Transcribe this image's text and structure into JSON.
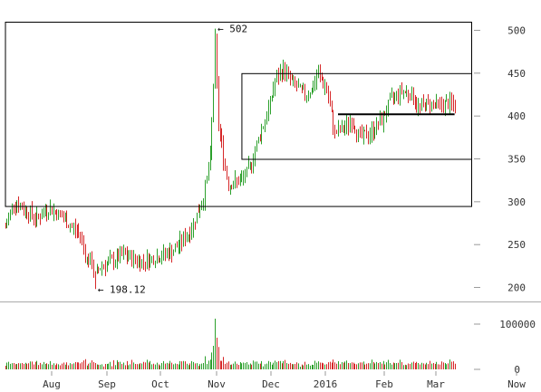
{
  "chart_data": {
    "type": "bar",
    "title": "",
    "xlabel": "",
    "ylabel": "",
    "price_ylim": [
      190,
      510
    ],
    "price_ticks": [
      "500",
      "450",
      "400",
      "350",
      "300",
      "250",
      "200"
    ],
    "volume_ylim": [
      0,
      130000
    ],
    "volume_ticks": [
      "100000",
      "0"
    ],
    "x_labels": [
      "Aug",
      "Sep",
      "Oct",
      "Nov",
      "Dec",
      "2016",
      "Feb",
      "Mar",
      "Now"
    ],
    "grid": false,
    "colors": {
      "up": "#2ca02c",
      "down": "#d62728",
      "guide": "#000000",
      "text": "#333333"
    },
    "annotations": [
      {
        "text": "← 502",
        "x": "2015-11-04",
        "y": 502
      },
      {
        "text": "← 198.12",
        "x": "2015-08-24",
        "y": 198.12
      }
    ],
    "rectangles": [
      {
        "x_from": "2015-07-01",
        "x_to": "2016-04-06",
        "y_from": 295,
        "y_to": 510
      },
      {
        "x_from": "2015-11-20",
        "x_to": "2016-04-06",
        "y_from": 350,
        "y_to": 450
      }
    ],
    "hline": {
      "x_from": "2016-01-17",
      "x_to": "2016-03-27",
      "y": 402
    },
    "series_keypoints": [
      [
        "2015-07-01",
        270
      ],
      [
        "2015-07-06",
        300
      ],
      [
        "2015-07-10",
        295
      ],
      [
        "2015-07-20",
        280
      ],
      [
        "2015-07-27",
        293
      ],
      [
        "2015-08-03",
        284
      ],
      [
        "2015-08-10",
        270
      ],
      [
        "2015-08-15",
        262
      ],
      [
        "2015-08-19",
        232
      ],
      [
        "2015-08-22",
        228
      ],
      [
        "2015-08-24",
        212
      ],
      [
        "2015-08-27",
        225
      ],
      [
        "2015-09-01",
        228
      ],
      [
        "2015-09-10",
        238
      ],
      [
        "2015-09-20",
        230
      ],
      [
        "2015-10-01",
        236
      ],
      [
        "2015-10-10",
        243
      ],
      [
        "2015-10-20",
        265
      ],
      [
        "2015-10-28",
        305
      ],
      [
        "2015-11-01",
        350
      ],
      [
        "2015-11-04",
        480
      ],
      [
        "2015-11-06",
        390
      ],
      [
        "2015-11-10",
        340
      ],
      [
        "2015-11-12",
        320
      ],
      [
        "2015-11-20",
        325
      ],
      [
        "2015-11-25",
        340
      ],
      [
        "2015-12-01",
        380
      ],
      [
        "2015-12-05",
        400
      ],
      [
        "2015-12-10",
        440
      ],
      [
        "2015-12-15",
        455
      ],
      [
        "2015-12-20",
        440
      ],
      [
        "2015-12-27",
        425
      ],
      [
        "2016-01-01",
        430
      ],
      [
        "2016-01-05",
        450
      ],
      [
        "2016-01-10",
        430
      ],
      [
        "2016-01-15",
        380
      ],
      [
        "2016-01-20",
        385
      ],
      [
        "2016-01-25",
        395
      ],
      [
        "2016-01-30",
        375
      ],
      [
        "2016-02-05",
        380
      ],
      [
        "2016-02-12",
        395
      ],
      [
        "2016-02-18",
        420
      ],
      [
        "2016-02-24",
        430
      ],
      [
        "2016-03-01",
        425
      ],
      [
        "2016-03-05",
        410
      ],
      [
        "2016-03-12",
        415
      ],
      [
        "2016-03-18",
        412
      ],
      [
        "2016-03-24",
        415
      ],
      [
        "2016-03-27",
        410
      ]
    ]
  }
}
